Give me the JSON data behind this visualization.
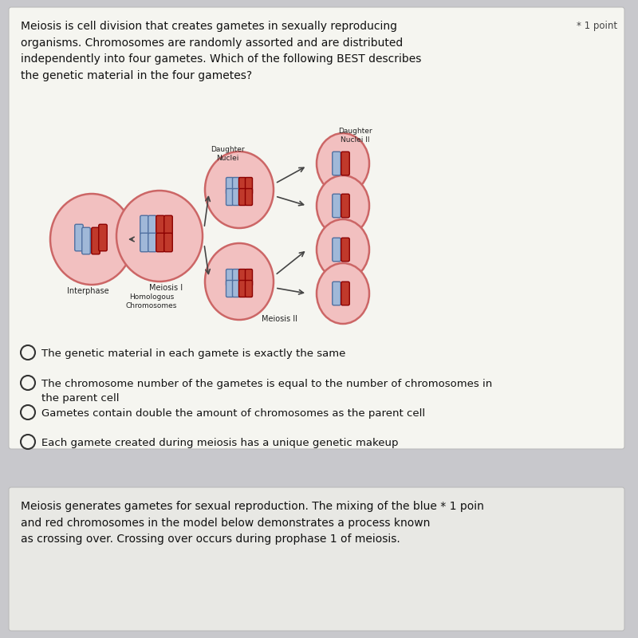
{
  "bg_color": "#c8c8cc",
  "card1_bg": "#f5f5f0",
  "card2_bg": "#e8e8e4",
  "title_text": "Meiosis is cell division that creates gametes in sexually reproducing\norganisms. Chromosomes are randomly assorted and are distributed\nindependently into four gametes. Which of the following BEST describes\nthe genetic material in the four gametes?",
  "point_text": "* 1 point",
  "options": [
    "The genetic material in each gamete is exactly the same",
    "The chromosome number of the gametes is equal to the number of chromosomes in\nthe parent cell",
    "Gametes contain double the amount of chromosomes as the parent cell",
    "Each gamete created during meiosis has a unique genetic makeup"
  ],
  "bottom_text": "Meiosis generates gametes for sexual reproduction. The mixing of the blue * 1 poin\nand red chromosomes in the model below demonstrates a process known\nas crossing over. Crossing over occurs during prophase 1 of meiosis.",
  "label_interphase": "Interphase",
  "label_meiosis1": "Meiosis I",
  "label_homologous": "Homologous\nChromosomes",
  "label_meiosis2": "Meiosis II",
  "label_daughter_nuclei": "Daughter\nNuclei",
  "label_daughter_nuclei2": "Daughter\nNuclei II",
  "pink_fill": "#f2c0c0",
  "pink_edge": "#cc6666",
  "chr_red_fill": "#c0392b",
  "chr_red_edge": "#8b0000",
  "chr_blue_fill": "#a0b8d8",
  "chr_blue_edge": "#5070a0"
}
